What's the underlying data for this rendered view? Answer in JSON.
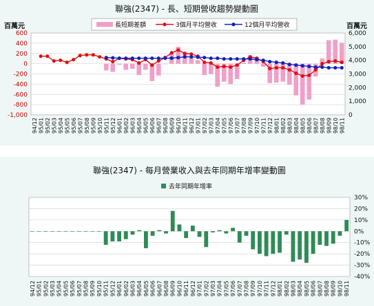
{
  "chart_data": [
    {
      "type": "bar+line",
      "title": "聯強(2347) -  長、短期營收趨勢變動圖",
      "left_unit": "百萬元",
      "right_unit": "百萬元",
      "legend": [
        "長短期差額",
        "3個月平均營收",
        "12個月平均營收"
      ],
      "legend_position": "top",
      "colors": {
        "bar": "#f0a0c8",
        "line3": "#e01010",
        "line12": "#1020c0"
      },
      "left_ylim": [
        -1000,
        600
      ],
      "left_ticks": [
        600,
        400,
        200,
        0,
        -200,
        -400,
        -600,
        -800,
        -1000
      ],
      "left_tick_labels": [
        "600",
        "400",
        "200",
        "0",
        "-200",
        "-400",
        "-600",
        "-800",
        "-1,000"
      ],
      "right_ylim": [
        0,
        6000
      ],
      "right_ticks": [
        6000,
        5000,
        4000,
        3000,
        2000,
        1000,
        0
      ],
      "right_tick_labels": [
        "6,000",
        "5,000",
        "4,000",
        "3,000",
        "2,000",
        "1,000",
        "0"
      ],
      "categories": [
        "94/12",
        "95/01",
        "95/02",
        "95/03",
        "95/04",
        "95/05",
        "95/06",
        "95/07",
        "95/08",
        "95/09",
        "95/10",
        "95/11",
        "95/12",
        "96/01",
        "96/02",
        "96/03",
        "96/04",
        "96/05",
        "96/06",
        "96/07",
        "96/08",
        "96/09",
        "96/10",
        "96/11",
        "96/12",
        "97/01",
        "97/02",
        "97/03",
        "97/04",
        "97/05",
        "97/06",
        "97/07",
        "97/08",
        "97/09",
        "97/10",
        "97/11",
        "97/12",
        "98/01",
        "98/02",
        "98/03",
        "98/04",
        "98/05",
        "98/06",
        "98/07",
        "98/08",
        "98/09",
        "98/10",
        "98/11"
      ],
      "series": [
        {
          "name": "長短期差額",
          "axis": "left",
          "kind": "bar",
          "values": [
            null,
            null,
            null,
            null,
            null,
            null,
            null,
            null,
            null,
            null,
            null,
            -130,
            -160,
            -20,
            -120,
            -100,
            -220,
            -120,
            -340,
            -230,
            -10,
            190,
            330,
            230,
            110,
            70,
            -220,
            -200,
            -450,
            -350,
            -400,
            -300,
            20,
            160,
            130,
            -60,
            -380,
            -370,
            -350,
            -410,
            -620,
            -800,
            -700,
            -250,
            100,
            460,
            470,
            410
          ]
        },
        {
          "name": "3個月平均營收",
          "axis": "right",
          "kind": "line",
          "values": [
            null,
            4300,
            4300,
            3950,
            4000,
            3850,
            4050,
            4350,
            4400,
            4400,
            4250,
            4100,
            3900,
            4150,
            4100,
            4050,
            3800,
            4050,
            3650,
            3950,
            4200,
            4550,
            4750,
            4500,
            4450,
            4300,
            3850,
            3800,
            3500,
            3550,
            3500,
            3650,
            4000,
            4250,
            4150,
            3900,
            3400,
            3450,
            3450,
            3300,
            3050,
            2850,
            2900,
            3300,
            3750,
            3900,
            3950,
            3850
          ]
        },
        {
          "name": "12個月平均營收",
          "axis": "right",
          "kind": "line",
          "values": [
            null,
            null,
            null,
            null,
            null,
            null,
            null,
            null,
            null,
            null,
            null,
            4200,
            4180,
            4150,
            4150,
            4150,
            4150,
            4150,
            4150,
            4150,
            4150,
            4160,
            4200,
            4250,
            4250,
            4230,
            4200,
            4150,
            4150,
            4100,
            4100,
            4100,
            4100,
            4100,
            4050,
            4000,
            3900,
            3850,
            3800,
            3700,
            3650,
            3600,
            3550,
            3500,
            3500,
            3450,
            3450,
            3450
          ]
        }
      ]
    },
    {
      "type": "bar",
      "title": "聯強(2347) -  每月營業收入與去年同期年增率變動圖",
      "legend": [
        "去年同期年增率"
      ],
      "legend_position": "top",
      "colors": {
        "bar": "#2e8b57"
      },
      "ylim": [
        -40,
        30
      ],
      "ticks": [
        30,
        20,
        10,
        0,
        -10,
        -20,
        -30,
        -40
      ],
      "tick_labels": [
        "30%",
        "20%",
        "10%",
        "0%",
        "-10%",
        "-20%",
        "-30%",
        "-40%"
      ],
      "categories": [
        "94/12",
        "95/01",
        "95/02",
        "95/03",
        "95/04",
        "95/05",
        "95/06",
        "95/07",
        "95/08",
        "95/09",
        "95/10",
        "95/11",
        "95/12",
        "96/01",
        "96/02",
        "96/03",
        "96/04",
        "96/05",
        "96/06",
        "96/07",
        "96/08",
        "96/09",
        "96/10",
        "96/11",
        "96/12",
        "97/01",
        "97/02",
        "97/03",
        "97/04",
        "97/05",
        "97/06",
        "97/07",
        "97/08",
        "97/09",
        "97/10",
        "97/11",
        "97/12",
        "98/01",
        "98/02",
        "98/03",
        "98/04",
        "98/05",
        "98/06",
        "98/07",
        "98/08",
        "98/09",
        "98/10",
        "98/11"
      ],
      "values": [
        0,
        0,
        0,
        0,
        0,
        0,
        0,
        0,
        0,
        0,
        0,
        -12,
        -9,
        -9,
        -7,
        -3,
        1,
        -15,
        -4,
        1,
        -2,
        18,
        6,
        -6,
        5,
        -5,
        -14,
        -1,
        1,
        -2,
        3,
        -10,
        -4,
        -16,
        -20,
        -22,
        -20,
        -19,
        -3,
        -27,
        -25,
        -28,
        -20,
        -12,
        -13,
        -11,
        -4,
        10
      ]
    }
  ]
}
